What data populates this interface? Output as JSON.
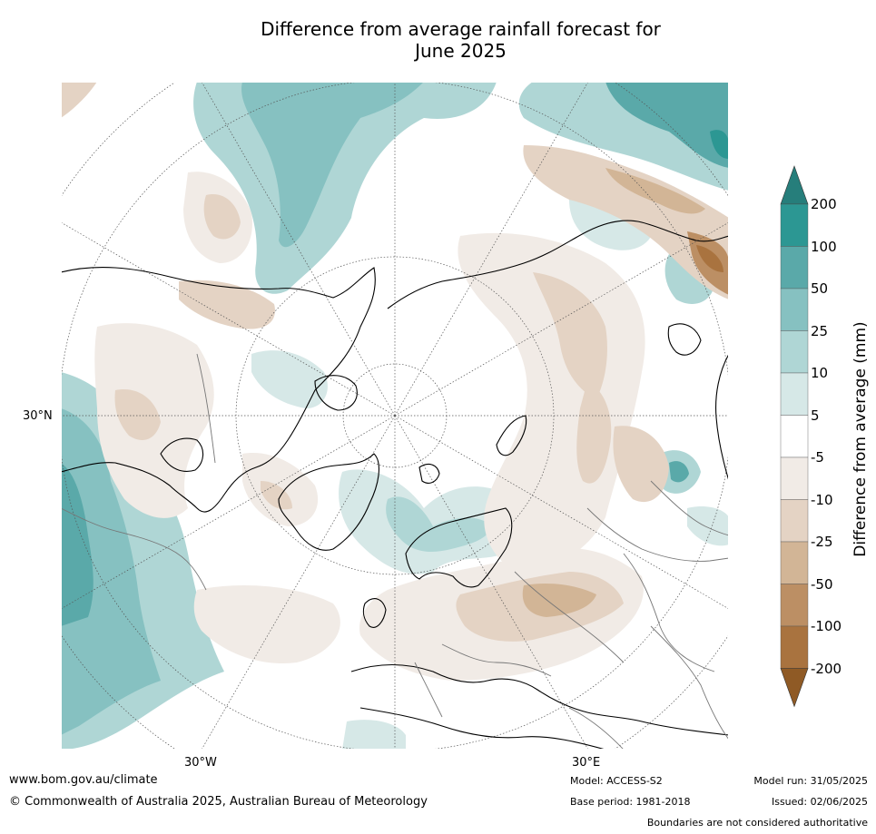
{
  "title": {
    "line1": "Difference from average rainfall forecast for",
    "line2": "June 2025"
  },
  "map": {
    "projection": "north-polar-stereographic",
    "latitude_labels": [
      "30°N"
    ],
    "longitude_labels": [
      "30°W",
      "30°E"
    ]
  },
  "colorbar": {
    "title": "Difference from average (mm)",
    "ticks": [
      "200",
      "100",
      "50",
      "25",
      "10",
      "5",
      "-5",
      "-10",
      "-25",
      "-50",
      "-100",
      "-200"
    ],
    "colors": {
      "over": "#267e7b",
      "b100_200": "#2c9793",
      "b50_100": "#5aa9a9",
      "b25_50": "#86c1c1",
      "b10_25": "#afd6d5",
      "b5_10": "#d6e8e7",
      "b_neutral": "#ffffff",
      "bm10_m5": "#f1ebe6",
      "bm25_m10": "#e4d3c4",
      "bm50_m25": "#d2b596",
      "bm100_m50": "#bc8f64",
      "bm200_m100": "#a9733f",
      "under": "#8f5a25"
    }
  },
  "footer": {
    "website": "www.bom.gov.au/climate",
    "copyright": "© Commonwealth of Australia 2025, Australian Bureau of Meteorology",
    "model": "Model: ACCESS-S2",
    "base_period": "Base period: 1981-2018",
    "model_run": "Model run: 31/05/2025",
    "issued": "Issued: 02/06/2025",
    "disclaimer": "Boundaries are not considered authoritative"
  }
}
